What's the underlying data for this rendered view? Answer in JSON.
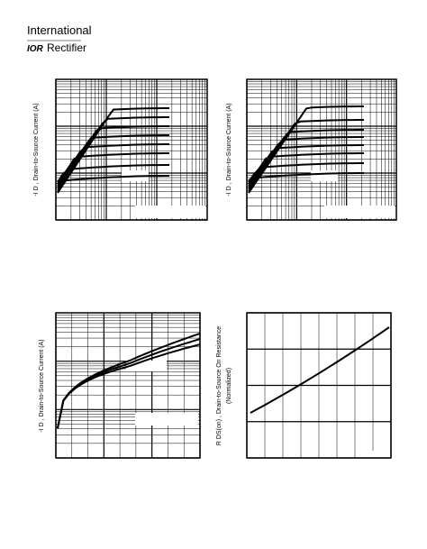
{
  "header": {
    "company": "International",
    "logo": "IOR",
    "division": "Rectifier"
  },
  "panels": [
    {
      "y_label": "-I D , Drain-to-Source Current (A)"
    },
    {
      "y_label": "-I D , Drain-to-Source Current (A)"
    },
    {
      "y_label": "-I D , Drain-to-Source Current (A)"
    },
    {
      "y_label": "R DS(on) , Drain-to-Source On Resistance",
      "y_label_2": "(Normalized)"
    }
  ]
}
